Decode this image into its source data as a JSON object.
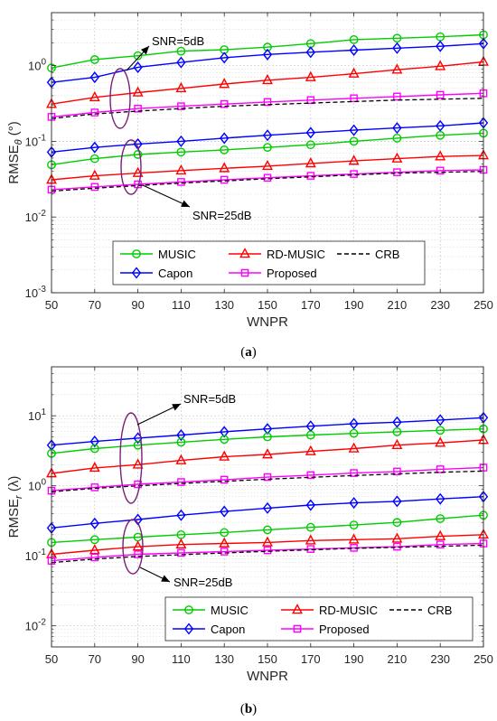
{
  "chart_data": [
    {
      "type": "line",
      "caption": "(a)",
      "ylabel_main": "RMSE",
      "ylabel_sub": "θ",
      "ylabel_unit": " (°)",
      "xlabel": "WNPR",
      "x": [
        50,
        70,
        90,
        110,
        130,
        150,
        170,
        190,
        210,
        230,
        250
      ],
      "xlim": [
        50,
        250
      ],
      "ylim": [
        0.001,
        5
      ],
      "yscale": "log",
      "yticks": [
        {
          "v": 0.001,
          "b": "10",
          "e": "-3"
        },
        {
          "v": 0.01,
          "b": "10",
          "e": "-2"
        },
        {
          "v": 0.1,
          "b": "10",
          "e": "-1"
        },
        {
          "v": 1,
          "b": "10",
          "e": "0"
        }
      ],
      "grid": true,
      "legend": [
        "MUSIC",
        "RD-MUSIC",
        "CRB",
        "Capon",
        "Proposed"
      ],
      "annotations": [
        "SNR=5dB",
        "SNR=25dB"
      ],
      "series": [
        {
          "name": "MUSIC",
          "snr": "5dB",
          "color": "#00cc00",
          "marker": "circle",
          "values": [
            0.93,
            1.2,
            1.35,
            1.55,
            1.62,
            1.75,
            1.95,
            2.2,
            2.3,
            2.4,
            2.55
          ]
        },
        {
          "name": "Capon",
          "snr": "5dB",
          "color": "#0000ff",
          "marker": "diamond",
          "values": [
            0.6,
            0.7,
            0.95,
            1.1,
            1.27,
            1.4,
            1.5,
            1.6,
            1.7,
            1.8,
            1.95
          ]
        },
        {
          "name": "RD-MUSIC",
          "snr": "5dB",
          "color": "#ff0000",
          "marker": "triangle",
          "values": [
            0.31,
            0.38,
            0.44,
            0.5,
            0.57,
            0.64,
            0.7,
            0.78,
            0.88,
            0.98,
            1.12
          ]
        },
        {
          "name": "Proposed",
          "snr": "5dB",
          "color": "#ff00ff",
          "marker": "square",
          "values": [
            0.21,
            0.24,
            0.27,
            0.29,
            0.31,
            0.33,
            0.35,
            0.37,
            0.39,
            0.41,
            0.43
          ]
        },
        {
          "name": "CRB",
          "snr": "5dB",
          "color": "#000000",
          "marker": "none",
          "dash": true,
          "values": [
            0.2,
            0.23,
            0.25,
            0.27,
            0.29,
            0.305,
            0.32,
            0.335,
            0.35,
            0.36,
            0.37
          ]
        },
        {
          "name": "Capon",
          "snr": "25dB",
          "color": "#0000ff",
          "marker": "diamond",
          "values": [
            0.072,
            0.083,
            0.092,
            0.1,
            0.11,
            0.12,
            0.13,
            0.14,
            0.15,
            0.16,
            0.175
          ]
        },
        {
          "name": "MUSIC",
          "snr": "25dB",
          "color": "#00cc00",
          "marker": "circle",
          "values": [
            0.049,
            0.059,
            0.067,
            0.072,
            0.077,
            0.083,
            0.09,
            0.1,
            0.11,
            0.12,
            0.128
          ]
        },
        {
          "name": "RD-MUSIC",
          "snr": "25dB",
          "color": "#ff0000",
          "marker": "triangle",
          "values": [
            0.031,
            0.035,
            0.038,
            0.041,
            0.044,
            0.047,
            0.051,
            0.055,
            0.059,
            0.063,
            0.065
          ]
        },
        {
          "name": "Proposed",
          "snr": "25dB",
          "color": "#ff00ff",
          "marker": "square",
          "values": [
            0.023,
            0.025,
            0.027,
            0.029,
            0.031,
            0.033,
            0.035,
            0.037,
            0.039,
            0.041,
            0.042
          ]
        },
        {
          "name": "CRB",
          "snr": "25dB",
          "color": "#000000",
          "marker": "none",
          "dash": true,
          "values": [
            0.022,
            0.024,
            0.026,
            0.028,
            0.03,
            0.032,
            0.034,
            0.036,
            0.038,
            0.039,
            0.04
          ]
        }
      ]
    },
    {
      "type": "line",
      "caption": "(b)",
      "ylabel_main": "RMSE",
      "ylabel_sub": "r",
      "ylabel_unit": " (λ)",
      "xlabel": "WNPR",
      "x": [
        50,
        70,
        90,
        110,
        130,
        150,
        170,
        190,
        210,
        230,
        250
      ],
      "xlim": [
        50,
        250
      ],
      "ylim": [
        0.005,
        50
      ],
      "yscale": "log",
      "yticks": [
        {
          "v": 0.01,
          "b": "10",
          "e": "-2"
        },
        {
          "v": 0.1,
          "b": "10",
          "e": "-1"
        },
        {
          "v": 1,
          "b": "10",
          "e": "0"
        },
        {
          "v": 10,
          "b": "10",
          "e": "1"
        }
      ],
      "grid": true,
      "legend": [
        "MUSIC",
        "RD-MUSIC",
        "CRB",
        "Capon",
        "Proposed"
      ],
      "annotations": [
        "SNR=5dB",
        "SNR=25dB"
      ],
      "series": [
        {
          "name": "Capon",
          "snr": "5dB",
          "color": "#0000ff",
          "marker": "diamond",
          "values": [
            3.8,
            4.3,
            4.8,
            5.3,
            5.9,
            6.5,
            7.1,
            7.7,
            8.1,
            8.7,
            9.4
          ]
        },
        {
          "name": "MUSIC",
          "snr": "5dB",
          "color": "#00cc00",
          "marker": "circle",
          "values": [
            2.9,
            3.4,
            3.8,
            4.2,
            4.6,
            5.0,
            5.3,
            5.6,
            5.9,
            6.2,
            6.5
          ]
        },
        {
          "name": "RD-MUSIC",
          "snr": "5dB",
          "color": "#ff0000",
          "marker": "triangle",
          "values": [
            1.5,
            1.8,
            2.0,
            2.3,
            2.6,
            2.8,
            3.1,
            3.4,
            3.8,
            4.1,
            4.5
          ]
        },
        {
          "name": "Proposed",
          "snr": "5dB",
          "color": "#ff00ff",
          "marker": "square",
          "values": [
            0.85,
            0.95,
            1.05,
            1.13,
            1.22,
            1.33,
            1.42,
            1.52,
            1.6,
            1.72,
            1.82
          ]
        },
        {
          "name": "CRB",
          "snr": "5dB",
          "color": "#000000",
          "marker": "none",
          "dash": true,
          "values": [
            0.82,
            0.92,
            1.0,
            1.08,
            1.16,
            1.24,
            1.32,
            1.4,
            1.48,
            1.56,
            1.62
          ]
        },
        {
          "name": "Capon",
          "snr": "25dB",
          "color": "#0000ff",
          "marker": "diamond",
          "values": [
            0.25,
            0.29,
            0.33,
            0.38,
            0.43,
            0.48,
            0.53,
            0.57,
            0.6,
            0.65,
            0.7
          ]
        },
        {
          "name": "MUSIC",
          "snr": "25dB",
          "color": "#00cc00",
          "marker": "circle",
          "values": [
            0.155,
            0.17,
            0.185,
            0.2,
            0.215,
            0.235,
            0.255,
            0.275,
            0.3,
            0.34,
            0.38
          ]
        },
        {
          "name": "RD-MUSIC",
          "snr": "25dB",
          "color": "#ff0000",
          "marker": "triangle",
          "values": [
            0.105,
            0.12,
            0.135,
            0.145,
            0.15,
            0.155,
            0.165,
            0.17,
            0.175,
            0.19,
            0.2
          ]
        },
        {
          "name": "Proposed",
          "snr": "25dB",
          "color": "#ff00ff",
          "marker": "square",
          "values": [
            0.085,
            0.095,
            0.105,
            0.11,
            0.115,
            0.12,
            0.125,
            0.13,
            0.135,
            0.145,
            0.15
          ]
        },
        {
          "name": "CRB",
          "snr": "25dB",
          "color": "#000000",
          "marker": "none",
          "dash": true,
          "values": [
            0.08,
            0.09,
            0.098,
            0.104,
            0.11,
            0.116,
            0.122,
            0.128,
            0.132,
            0.137,
            0.142
          ]
        }
      ]
    }
  ]
}
